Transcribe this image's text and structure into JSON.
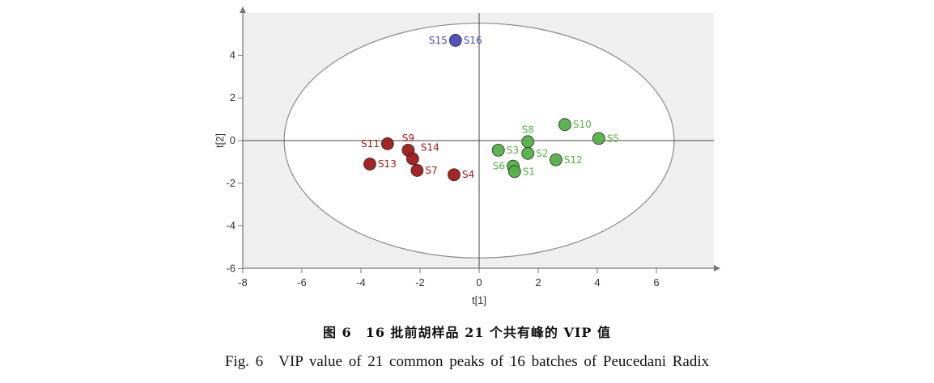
{
  "chart_data": {
    "type": "scatter",
    "xlabel": "t[1]",
    "ylabel": "t[2]",
    "xlim": [
      -8,
      8
    ],
    "ylim": [
      -6,
      6
    ],
    "xticks": [
      -8,
      -6,
      -4,
      -2,
      0,
      2,
      4,
      6
    ],
    "yticks": [
      -6,
      -4,
      -2,
      0,
      2,
      4
    ],
    "grid": false,
    "ellipse": {
      "center": [
        0,
        0
      ],
      "rx": 6.6,
      "ry": 5.5
    },
    "colors": {
      "red": "#a01818",
      "green": "#52b043",
      "blue": "#4a4ab8",
      "plot_bg": "#efefef"
    },
    "points": [
      {
        "label": "S15",
        "x": -0.8,
        "y": 4.7,
        "color": "blue",
        "labelPos": "left"
      },
      {
        "label": "S16",
        "x": -0.8,
        "y": 4.7,
        "color": "blue",
        "labelPos": "right"
      },
      {
        "label": "S9",
        "x": -2.4,
        "y": -0.45,
        "color": "red",
        "labelPos": "above"
      },
      {
        "label": "S11",
        "x": -3.1,
        "y": -0.15,
        "color": "red",
        "labelPos": "left"
      },
      {
        "label": "S14",
        "x": -2.25,
        "y": -0.85,
        "color": "red",
        "labelPos": "aboveright"
      },
      {
        "label": "S13",
        "x": -3.7,
        "y": -1.1,
        "color": "red",
        "labelPos": "right"
      },
      {
        "label": "S7",
        "x": -2.1,
        "y": -1.4,
        "color": "red",
        "labelPos": "right"
      },
      {
        "label": "S4",
        "x": -0.85,
        "y": -1.6,
        "color": "red",
        "labelPos": "right"
      },
      {
        "label": "S8",
        "x": 1.65,
        "y": -0.05,
        "color": "green",
        "labelPos": "above"
      },
      {
        "label": "S10",
        "x": 2.9,
        "y": 0.75,
        "color": "green",
        "labelPos": "right"
      },
      {
        "label": "S5",
        "x": 4.05,
        "y": 0.1,
        "color": "green",
        "labelPos": "right"
      },
      {
        "label": "S3",
        "x": 0.65,
        "y": -0.45,
        "color": "green",
        "labelPos": "right"
      },
      {
        "label": "S2",
        "x": 1.65,
        "y": -0.6,
        "color": "green",
        "labelPos": "right"
      },
      {
        "label": "S12",
        "x": 2.6,
        "y": -0.9,
        "color": "green",
        "labelPos": "right"
      },
      {
        "label": "S6",
        "x": 1.15,
        "y": -1.2,
        "color": "green",
        "labelPos": "left"
      },
      {
        "label": "S1",
        "x": 1.2,
        "y": -1.45,
        "color": "green",
        "labelPos": "right"
      }
    ]
  },
  "caption": {
    "zh": "图 6　16 批前胡样品 21 个共有峰的 VIP 值",
    "en": "Fig. 6　VIP value of 21 common peaks of 16 batches of Peucedani Radix"
  }
}
